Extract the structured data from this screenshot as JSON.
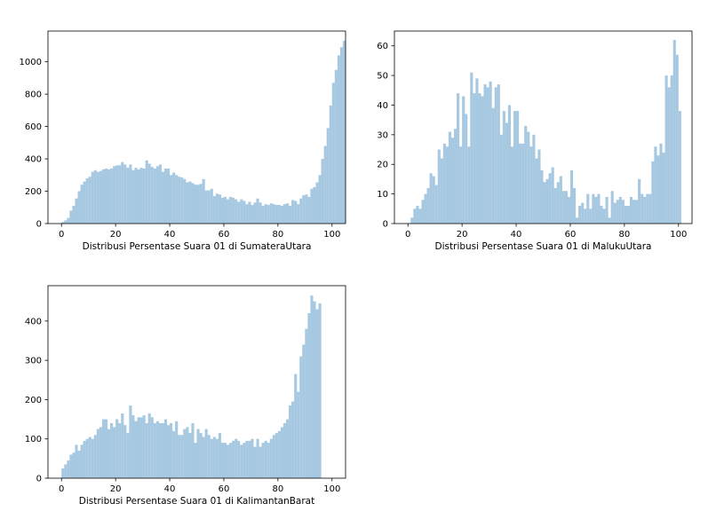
{
  "chart_data": [
    {
      "type": "bar",
      "xlabel": "Distribusi Persentase Suara 01 di SumateraUtara",
      "ylabel": "",
      "xlim": [
        -5,
        105
      ],
      "ylim": [
        0,
        1190
      ],
      "xticks": [
        0,
        20,
        40,
        60,
        80,
        100
      ],
      "yticks": [
        0,
        200,
        400,
        600,
        800,
        1000
      ],
      "bar_color": "#a6c8e1",
      "bin_width": 1,
      "bin_start": 0,
      "values": [
        10,
        20,
        35,
        80,
        110,
        155,
        200,
        240,
        260,
        280,
        290,
        320,
        330,
        320,
        325,
        335,
        340,
        335,
        340,
        355,
        360,
        360,
        380,
        365,
        345,
        365,
        330,
        345,
        335,
        345,
        340,
        390,
        370,
        350,
        340,
        355,
        365,
        320,
        340,
        340,
        300,
        315,
        300,
        290,
        285,
        275,
        255,
        260,
        250,
        240,
        240,
        245,
        275,
        205,
        205,
        215,
        170,
        185,
        180,
        160,
        165,
        150,
        165,
        160,
        150,
        135,
        150,
        140,
        120,
        135,
        115,
        130,
        155,
        130,
        110,
        120,
        115,
        125,
        120,
        115,
        115,
        110,
        120,
        125,
        110,
        145,
        140,
        120,
        155,
        175,
        180,
        165,
        215,
        225,
        255,
        300,
        400,
        480,
        590,
        730,
        870,
        950,
        1040,
        1090,
        1130
      ]
    },
    {
      "type": "bar",
      "xlabel": "Distribusi Persentase Suara 01 di MalukuUtara",
      "ylabel": "",
      "xlim": [
        -5,
        105
      ],
      "ylim": [
        0,
        65
      ],
      "xticks": [
        0,
        20,
        40,
        60,
        80,
        100
      ],
      "yticks": [
        0,
        10,
        20,
        30,
        40,
        50,
        60
      ],
      "bar_color": "#a6c8e1",
      "bin_width": 1,
      "bin_start": 1,
      "values": [
        2,
        5,
        6,
        5,
        8,
        10,
        12,
        17,
        16,
        13,
        25,
        22,
        27,
        26,
        31,
        29,
        32,
        44,
        26,
        43,
        37,
        26,
        51,
        44,
        49,
        44,
        43,
        47,
        46,
        48,
        39,
        46,
        47,
        30,
        38,
        34,
        40,
        26,
        38,
        38,
        27,
        27,
        33,
        31,
        26,
        30,
        22,
        25,
        18,
        14,
        15,
        17,
        19,
        12,
        14,
        16,
        11,
        11,
        9,
        18,
        12,
        2,
        6,
        7,
        5,
        10,
        5,
        10,
        9,
        10,
        6,
        5,
        9,
        2,
        11,
        7,
        8,
        9,
        8,
        6,
        6,
        9,
        8,
        8,
        15,
        10,
        9,
        10,
        10,
        21,
        26,
        23,
        27,
        24,
        50,
        46,
        50,
        62,
        57,
        38
      ]
    },
    {
      "type": "bar",
      "xlabel": "Distribusi Persentase Suara 01 di KalimantanBarat",
      "ylabel": "",
      "xlim": [
        -5,
        105
      ],
      "ylim": [
        0,
        490
      ],
      "xticks": [
        0,
        20,
        40,
        60,
        80,
        100
      ],
      "yticks": [
        0,
        100,
        200,
        300,
        400
      ],
      "bar_color": "#a6c8e1",
      "bin_width": 1,
      "bin_start": 0,
      "values": [
        25,
        35,
        45,
        60,
        65,
        85,
        70,
        85,
        95,
        100,
        105,
        100,
        110,
        125,
        130,
        150,
        150,
        125,
        140,
        130,
        150,
        140,
        165,
        135,
        115,
        185,
        160,
        145,
        155,
        155,
        160,
        140,
        165,
        155,
        140,
        145,
        140,
        140,
        150,
        135,
        140,
        120,
        145,
        110,
        110,
        125,
        130,
        115,
        140,
        90,
        125,
        115,
        105,
        125,
        110,
        100,
        105,
        100,
        115,
        90,
        90,
        85,
        90,
        95,
        100,
        95,
        85,
        90,
        95,
        95,
        100,
        80,
        100,
        80,
        90,
        95,
        90,
        100,
        110,
        115,
        120,
        130,
        140,
        150,
        185,
        195,
        265,
        220,
        310,
        340,
        380,
        420,
        465,
        450,
        430,
        445
      ]
    }
  ]
}
